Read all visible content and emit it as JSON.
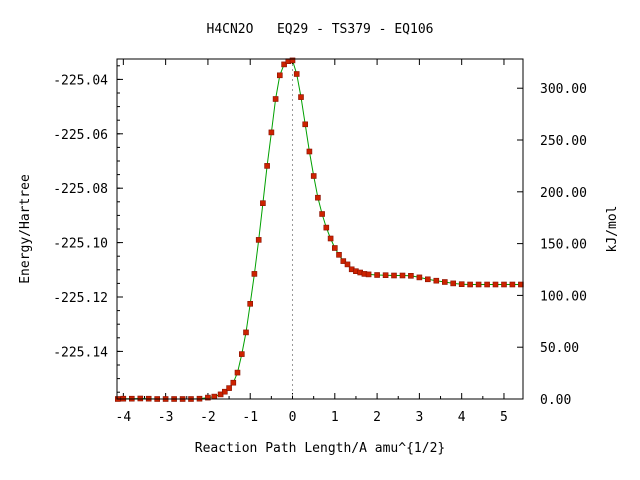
{
  "chart_data": {
    "type": "line",
    "title": "H4CN2O   EQ29 - TS379 - EQ106",
    "xlabel": "Reaction Path Length/A amu^{1/2}",
    "ylabel": "Energy/Hartree",
    "y2label": "kJ/mol",
    "xlim": [
      -4.15,
      5.45
    ],
    "ylim": [
      -225.1575,
      -225.0325
    ],
    "y2lim": [
      0,
      328.2
    ],
    "x_ticks": [
      -4,
      -3,
      -2,
      -1,
      0,
      1,
      2,
      3,
      4,
      5
    ],
    "x_tick_labels": [
      "-4",
      "-3",
      "-2",
      "-1",
      "0",
      "1",
      "2",
      "3",
      "4",
      "5"
    ],
    "y_ticks": [
      -225.04,
      -225.06,
      -225.08,
      -225.1,
      -225.12,
      -225.14
    ],
    "y_tick_labels": [
      "-225.04",
      "-225.06",
      "-225.08",
      "-225.10",
      "-225.12",
      "-225.14"
    ],
    "y2_ticks": [
      0,
      50,
      100,
      150,
      200,
      250,
      300
    ],
    "y2_tick_labels": [
      "0.00",
      "50.00",
      "100.00",
      "150.00",
      "200.00",
      "250.00",
      "300.00"
    ],
    "ts_x": 0,
    "grid": false,
    "legend": "none",
    "colors": {
      "line": "#00a000",
      "marker": "#cc2200",
      "marker_edge": "#881100",
      "ts_line": "#999999",
      "axis": "#000000"
    },
    "series": [
      {
        "values": [
          [
            -4.13,
            -225.1575
          ],
          [
            -4.0,
            -225.1574
          ],
          [
            -3.8,
            -225.1574
          ],
          [
            -3.6,
            -225.1573
          ],
          [
            -3.4,
            -225.1574
          ],
          [
            -3.2,
            -225.1575
          ],
          [
            -3.0,
            -225.1575
          ],
          [
            -2.8,
            -225.1575
          ],
          [
            -2.6,
            -225.1575
          ],
          [
            -2.4,
            -225.1575
          ],
          [
            -2.2,
            -225.1574
          ],
          [
            -2.0,
            -225.157
          ],
          [
            -1.85,
            -225.1566
          ],
          [
            -1.7,
            -225.1558
          ],
          [
            -1.6,
            -225.1548
          ],
          [
            -1.5,
            -225.1535
          ],
          [
            -1.4,
            -225.1515
          ],
          [
            -1.3,
            -225.1478
          ],
          [
            -1.2,
            -225.141
          ],
          [
            -1.1,
            -225.133
          ],
          [
            -1.0,
            -225.1225
          ],
          [
            -0.9,
            -225.1115
          ],
          [
            -0.8,
            -225.099
          ],
          [
            -0.7,
            -225.0855
          ],
          [
            -0.6,
            -225.0718
          ],
          [
            -0.5,
            -225.0595
          ],
          [
            -0.4,
            -225.0472
          ],
          [
            -0.3,
            -225.0385
          ],
          [
            -0.2,
            -225.0345
          ],
          [
            -0.1,
            -225.0333
          ],
          [
            0.0,
            -225.033
          ],
          [
            0.1,
            -225.038
          ],
          [
            0.2,
            -225.0465
          ],
          [
            0.3,
            -225.0565
          ],
          [
            0.4,
            -225.0665
          ],
          [
            0.5,
            -225.0755
          ],
          [
            0.6,
            -225.0835
          ],
          [
            0.7,
            -225.0895
          ],
          [
            0.8,
            -225.0945
          ],
          [
            0.9,
            -225.0985
          ],
          [
            1.0,
            -225.102
          ],
          [
            1.1,
            -225.1045
          ],
          [
            1.2,
            -225.1068
          ],
          [
            1.3,
            -225.108
          ],
          [
            1.4,
            -225.1098
          ],
          [
            1.5,
            -225.1105
          ],
          [
            1.6,
            -225.111
          ],
          [
            1.7,
            -225.1115
          ],
          [
            1.8,
            -225.1117
          ],
          [
            2.0,
            -225.1119
          ],
          [
            2.2,
            -225.112
          ],
          [
            2.4,
            -225.1121
          ],
          [
            2.6,
            -225.1121
          ],
          [
            2.8,
            -225.1122
          ],
          [
            3.0,
            -225.1128
          ],
          [
            3.2,
            -225.1135
          ],
          [
            3.4,
            -225.114
          ],
          [
            3.6,
            -225.1145
          ],
          [
            3.8,
            -225.115
          ],
          [
            4.0,
            -225.1153
          ],
          [
            4.2,
            -225.1154
          ],
          [
            4.4,
            -225.1154
          ],
          [
            4.6,
            -225.1154
          ],
          [
            4.8,
            -225.1154
          ],
          [
            5.0,
            -225.1154
          ],
          [
            5.2,
            -225.1154
          ],
          [
            5.4,
            -225.1154
          ]
        ]
      }
    ]
  }
}
